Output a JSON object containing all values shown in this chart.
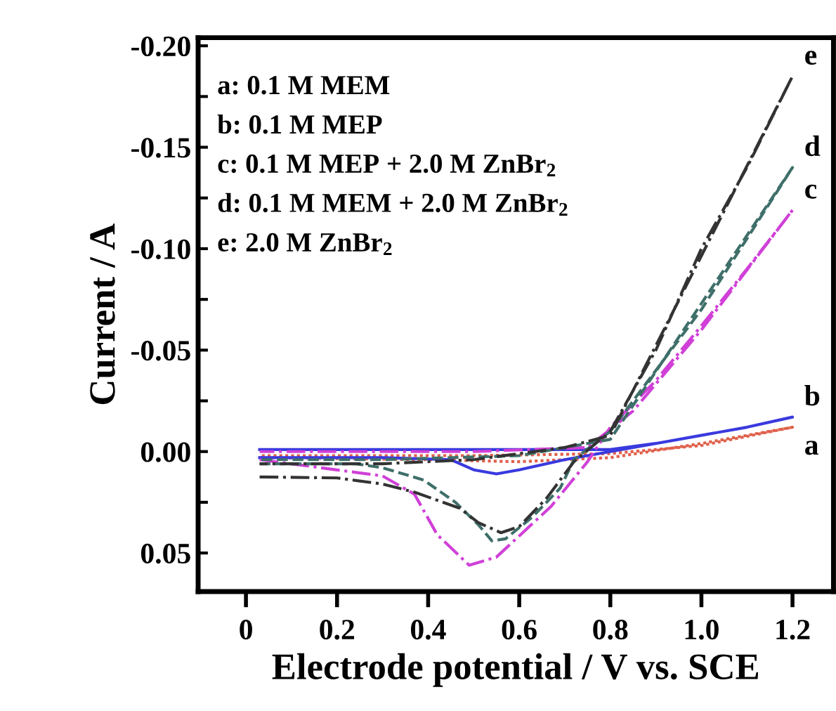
{
  "chart_data": {
    "type": "line",
    "xlabel": "Electrode potential / V vs. SCE",
    "ylabel": "Current / A",
    "xlim": [
      -0.105,
      1.29
    ],
    "ylim": [
      0.069,
      -0.204
    ],
    "xticks": [
      0,
      0.2,
      0.4,
      0.6,
      0.8,
      {
        "value": 1,
        "label": "1.0"
      },
      1.2
    ],
    "yticks": [
      {
        "value": -0.2,
        "label": "-0.20"
      },
      {
        "value": -0.175,
        "label": null
      },
      {
        "value": -0.15,
        "label": "-0.15"
      },
      {
        "value": -0.125,
        "label": null
      },
      {
        "value": -0.1,
        "label": "-0.10"
      },
      {
        "value": -0.075,
        "label": null
      },
      {
        "value": -0.05,
        "label": "-0.05"
      },
      {
        "value": -0.025,
        "label": null
      },
      {
        "value": 0,
        "label": "0.00"
      },
      {
        "value": 0.025,
        "label": null
      },
      {
        "value": 0.05,
        "label": "0.05"
      }
    ],
    "grid": false,
    "legend": false,
    "annotations": [
      "a: 0.1 M MEM",
      "b: 0.1 M MEP",
      "c: 0.1 M MEP + 2.0 M ZnBr$_{2}$",
      "d: 0.1 M MEM + 2.0 M ZnBr$_{2}$",
      "e: 2.0 M ZnBr$_{2}$"
    ],
    "series": [
      {
        "name": "a",
        "color": "#e0604a",
        "line_style": "dotted",
        "x": [
          0.03,
          0.4,
          0.6,
          0.8,
          1.0,
          1.2,
          1.0,
          0.8,
          0.5,
          0.03
        ],
        "values": [
          0.003,
          0.004,
          0.005,
          0.003,
          -0.004,
          -0.012,
          -0.003,
          0.001,
          0.002,
          0.002
        ]
      },
      {
        "name": "b",
        "color": "#3a3adf",
        "line_style": "solid",
        "x": [
          0.03,
          0.3,
          0.6,
          0.8,
          0.9,
          1.0,
          1.1,
          1.2,
          1.1,
          1.0,
          0.9,
          0.8,
          0.7,
          0.6,
          0.55,
          0.5,
          0.45,
          0.3,
          0.03
        ],
        "values": [
          -0.001,
          -0.001,
          -0.001,
          -0.001,
          -0.004,
          -0.008,
          -0.012,
          -0.017,
          -0.012,
          -0.008,
          -0.004,
          0.0,
          0.004,
          0.009,
          0.011,
          0.009,
          0.004,
          0.003,
          0.003
        ]
      },
      {
        "name": "c",
        "color": "#d040d8",
        "line_style": "dashdot",
        "x": [
          0.03,
          0.3,
          0.37,
          0.42,
          0.49,
          0.55,
          0.67,
          0.75,
          0.8,
          0.9,
          1.0,
          1.1,
          1.2,
          1.0,
          0.85,
          0.75,
          0.5,
          0.03
        ],
        "values": [
          0.004,
          0.012,
          0.021,
          0.041,
          0.056,
          0.052,
          0.027,
          0.005,
          -0.012,
          -0.035,
          -0.062,
          -0.09,
          -0.119,
          -0.06,
          -0.02,
          -0.002,
          0.0,
          0.0
        ]
      },
      {
        "name": "d",
        "color": "#3f6f6a",
        "line_style": "dashed",
        "x": [
          0.03,
          0.24,
          0.3,
          0.39,
          0.46,
          0.51,
          0.54,
          0.57,
          0.63,
          0.69,
          0.72,
          0.8,
          0.9,
          1.0,
          1.1,
          1.2,
          0.8,
          0.6,
          0.3,
          0.03
        ],
        "values": [
          0.006,
          0.006,
          0.008,
          0.014,
          0.025,
          0.036,
          0.044,
          0.043,
          0.032,
          0.018,
          0.004,
          -0.01,
          -0.04,
          -0.07,
          -0.105,
          -0.14,
          -0.006,
          0.002,
          0.004,
          0.004
        ]
      },
      {
        "name": "e",
        "color": "#333333",
        "line_style": "dashdot",
        "x": [
          0.03,
          0.2,
          0.3,
          0.37,
          0.47,
          0.51,
          0.56,
          0.6,
          0.66,
          0.72,
          0.8,
          0.9,
          1.0,
          1.1,
          1.2,
          0.8,
          0.7,
          0.5,
          0.3,
          0.03
        ],
        "values": [
          0.0125,
          0.013,
          0.016,
          0.02,
          0.028,
          0.035,
          0.04,
          0.037,
          0.023,
          0.005,
          -0.01,
          -0.05,
          -0.1,
          -0.14,
          -0.185,
          -0.008,
          -0.002,
          0.004,
          0.006,
          0.006
        ]
      }
    ]
  }
}
